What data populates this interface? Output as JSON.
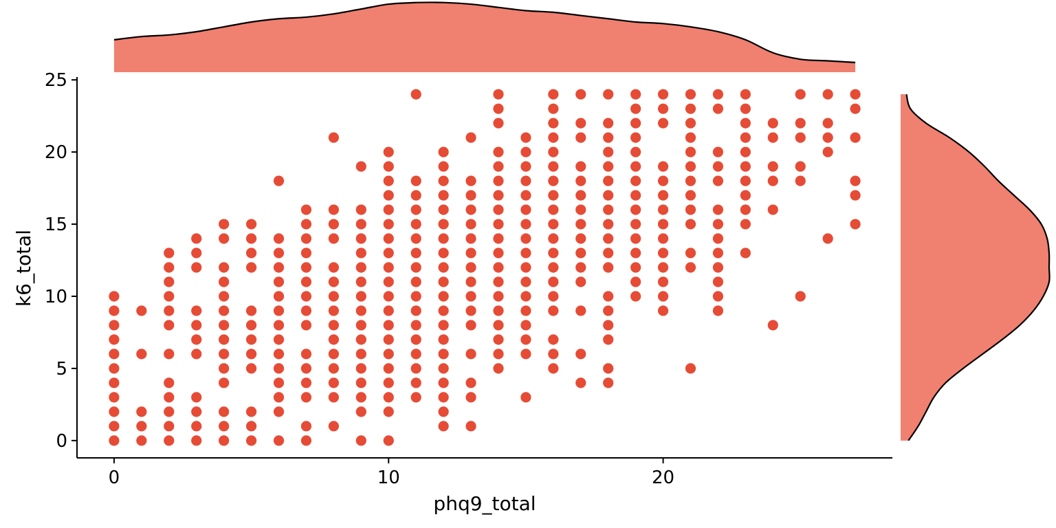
{
  "chart_data": {
    "type": "scatter",
    "title": "",
    "xlabel": "phq9_total",
    "ylabel": "k6_total",
    "xlim": [
      -1.35,
      28.35
    ],
    "ylim": [
      -1.2,
      25.2
    ],
    "x_ticks": [
      0,
      10,
      20
    ],
    "y_ticks": [
      0,
      5,
      10,
      15,
      20,
      25
    ],
    "grid": false,
    "marker_color": "#E64B35",
    "density_fill": "#F08070",
    "density_outline": "#000000",
    "points_by_x": [
      {
        "x": 0,
        "y": [
          0,
          1,
          2,
          3,
          4,
          5,
          6,
          7,
          8,
          9,
          10
        ]
      },
      {
        "x": 1,
        "y": [
          0,
          1,
          2,
          6,
          9
        ]
      },
      {
        "x": 2,
        "y": [
          0,
          1,
          2,
          3,
          4,
          6,
          8,
          9,
          10,
          11,
          12,
          13
        ]
      },
      {
        "x": 3,
        "y": [
          0,
          1,
          2,
          3,
          6,
          7,
          8,
          9,
          12,
          13,
          14
        ]
      },
      {
        "x": 4,
        "y": [
          0,
          1,
          2,
          4,
          5,
          6,
          7,
          8,
          9,
          10,
          11,
          12,
          14,
          15
        ]
      },
      {
        "x": 5,
        "y": [
          0,
          1,
          2,
          5,
          6,
          7,
          8,
          9,
          12,
          13,
          14,
          15
        ]
      },
      {
        "x": 6,
        "y": [
          0,
          2,
          3,
          4,
          5,
          6,
          7,
          8,
          9,
          10,
          11,
          12,
          13,
          14,
          18
        ]
      },
      {
        "x": 7,
        "y": [
          0,
          1,
          3,
          4,
          5,
          6,
          8,
          9,
          10,
          11,
          12,
          13,
          14,
          15,
          16
        ]
      },
      {
        "x": 8,
        "y": [
          1,
          3,
          4,
          5,
          6,
          7,
          8,
          9,
          10,
          11,
          12,
          14,
          15,
          16,
          21
        ]
      },
      {
        "x": 9,
        "y": [
          0,
          2,
          3,
          4,
          5,
          6,
          7,
          8,
          9,
          10,
          11,
          12,
          13,
          14,
          15,
          16,
          19
        ]
      },
      {
        "x": 10,
        "y": [
          0,
          2,
          3,
          4,
          5,
          6,
          7,
          8,
          9,
          10,
          11,
          12,
          13,
          14,
          15,
          16,
          17,
          18,
          19,
          20
        ]
      },
      {
        "x": 11,
        "y": [
          3,
          4,
          5,
          6,
          7,
          8,
          9,
          10,
          11,
          12,
          13,
          14,
          15,
          16,
          17,
          18,
          24
        ]
      },
      {
        "x": 12,
        "y": [
          1,
          2,
          3,
          4,
          5,
          6,
          7,
          8,
          9,
          10,
          11,
          12,
          13,
          14,
          15,
          16,
          17,
          18,
          19,
          20
        ]
      },
      {
        "x": 13,
        "y": [
          1,
          3,
          4,
          6,
          8,
          9,
          10,
          11,
          12,
          13,
          14,
          15,
          16,
          17,
          18,
          21
        ]
      },
      {
        "x": 14,
        "y": [
          5,
          6,
          7,
          8,
          9,
          10,
          11,
          12,
          13,
          14,
          15,
          16,
          17,
          18,
          19,
          20,
          22,
          23,
          24
        ]
      },
      {
        "x": 15,
        "y": [
          3,
          6,
          7,
          8,
          9,
          10,
          11,
          12,
          13,
          14,
          15,
          16,
          17,
          18,
          19,
          20,
          21
        ]
      },
      {
        "x": 16,
        "y": [
          5,
          6,
          7,
          9,
          10,
          11,
          12,
          13,
          14,
          15,
          16,
          17,
          18,
          19,
          20,
          21,
          22,
          23,
          24
        ]
      },
      {
        "x": 17,
        "y": [
          4,
          6,
          9,
          11,
          12,
          13,
          14,
          15,
          16,
          17,
          18,
          19,
          21,
          22,
          24
        ]
      },
      {
        "x": 18,
        "y": [
          4,
          5,
          7,
          8,
          9,
          10,
          12,
          13,
          14,
          15,
          16,
          17,
          18,
          19,
          20,
          21,
          22,
          24
        ]
      },
      {
        "x": 19,
        "y": [
          10,
          11,
          12,
          13,
          14,
          15,
          16,
          17,
          18,
          19,
          20,
          21,
          22,
          23,
          24
        ]
      },
      {
        "x": 20,
        "y": [
          9,
          10,
          11,
          12,
          13,
          14,
          15,
          16,
          17,
          18,
          19,
          22,
          23,
          24
        ]
      },
      {
        "x": 21,
        "y": [
          5,
          12,
          13,
          15,
          16,
          17,
          18,
          19,
          20,
          21,
          22,
          23,
          24
        ]
      },
      {
        "x": 22,
        "y": [
          9,
          10,
          11,
          12,
          13,
          14,
          15,
          16,
          18,
          19,
          20,
          23,
          24
        ]
      },
      {
        "x": 23,
        "y": [
          13,
          15,
          16,
          17,
          18,
          19,
          20,
          21,
          22,
          23,
          24
        ]
      },
      {
        "x": 24,
        "y": [
          8,
          16,
          18,
          19,
          21,
          22
        ]
      },
      {
        "x": 25,
        "y": [
          10,
          18,
          19,
          21,
          22,
          24
        ]
      },
      {
        "x": 26,
        "y": [
          14,
          20,
          21,
          22,
          24
        ]
      },
      {
        "x": 27,
        "y": [
          15,
          17,
          18,
          21,
          23,
          24
        ]
      }
    ],
    "x_density": {
      "x": [
        0,
        1,
        2,
        3,
        4,
        5,
        6,
        7,
        8,
        9,
        10,
        11,
        12,
        13,
        14,
        15,
        16,
        17,
        18,
        19,
        20,
        21,
        22,
        23,
        24,
        25,
        26,
        27
      ],
      "density": [
        0.02,
        0.022,
        0.023,
        0.025,
        0.028,
        0.031,
        0.033,
        0.034,
        0.036,
        0.039,
        0.042,
        0.043,
        0.043,
        0.042,
        0.04,
        0.038,
        0.037,
        0.035,
        0.033,
        0.031,
        0.03,
        0.028,
        0.025,
        0.02,
        0.012,
        0.008,
        0.007,
        0.006
      ]
    },
    "y_density": {
      "y": [
        0,
        1,
        2,
        3,
        4,
        5,
        6,
        7,
        8,
        9,
        10,
        11,
        12,
        13,
        14,
        15,
        16,
        17,
        18,
        19,
        20,
        21,
        22,
        23,
        24
      ],
      "density": [
        0.004,
        0.009,
        0.013,
        0.017,
        0.023,
        0.032,
        0.042,
        0.052,
        0.061,
        0.068,
        0.073,
        0.076,
        0.076,
        0.076,
        0.075,
        0.072,
        0.066,
        0.058,
        0.05,
        0.043,
        0.035,
        0.025,
        0.013,
        0.005,
        0.003
      ]
    }
  }
}
